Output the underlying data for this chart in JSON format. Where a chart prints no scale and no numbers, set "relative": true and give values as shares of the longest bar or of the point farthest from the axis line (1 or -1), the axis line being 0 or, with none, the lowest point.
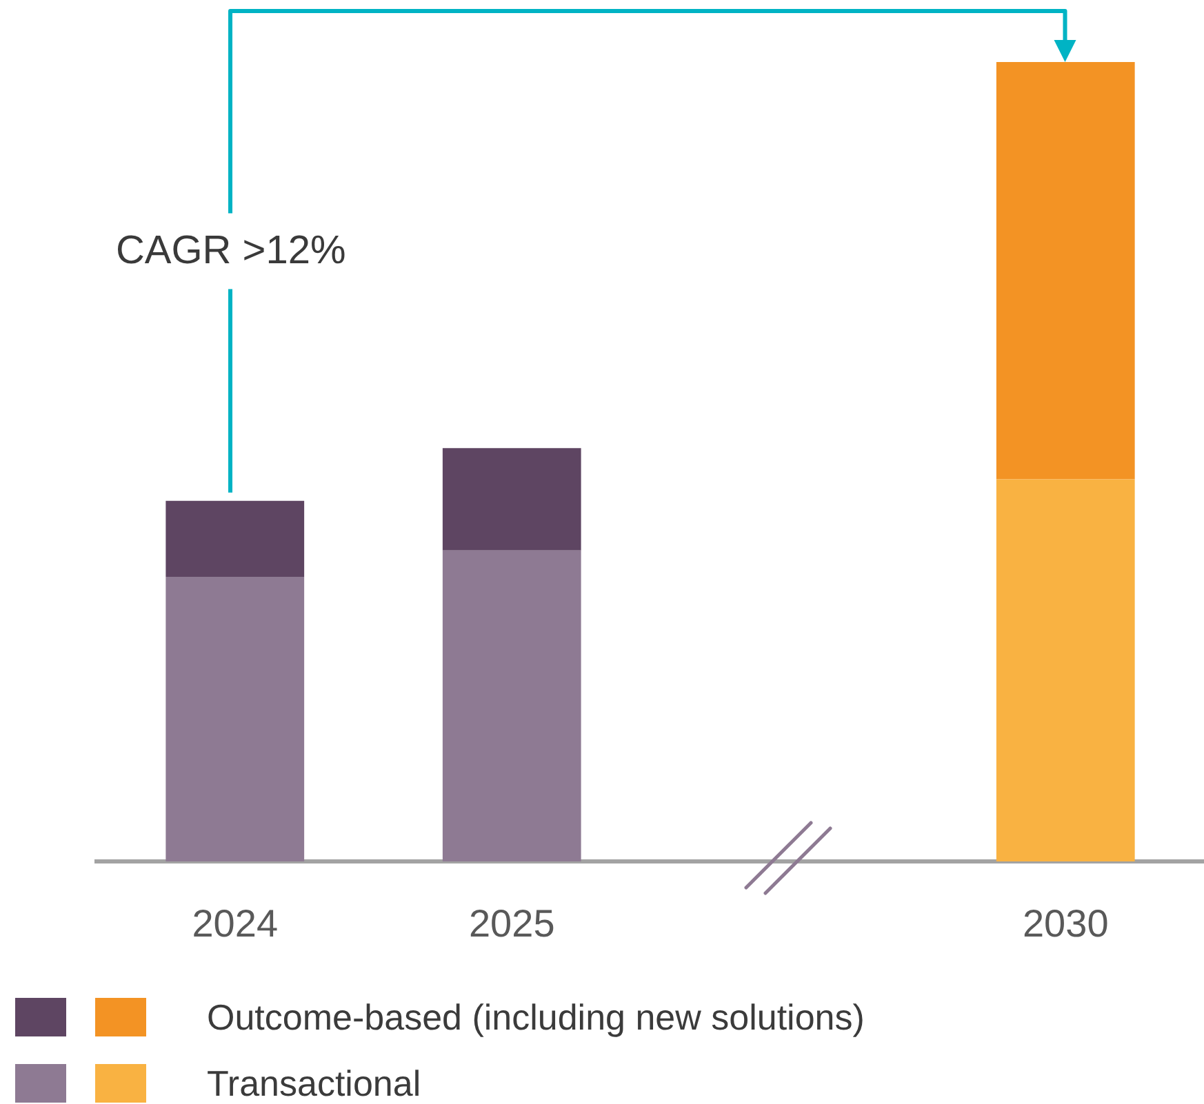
{
  "chart_data": {
    "type": "bar",
    "stacked": true,
    "relative": true,
    "categories": [
      "2024",
      "2025",
      null,
      "2030"
    ],
    "series": [
      {
        "name": "Transactional",
        "colors": [
          "#8e7a93",
          "#8e7a93",
          null,
          "#f9b242"
        ],
        "values": [
          0.356,
          0.389,
          null,
          0.478
        ]
      },
      {
        "name": "Outcome-based (including new solutions)",
        "colors": [
          "#5e4562",
          "#5e4562",
          null,
          "#f39324"
        ],
        "values": [
          0.095,
          0.128,
          null,
          0.522
        ]
      }
    ],
    "annotations": [
      "CAGR >12%"
    ],
    "legend": "bottom"
  }
}
